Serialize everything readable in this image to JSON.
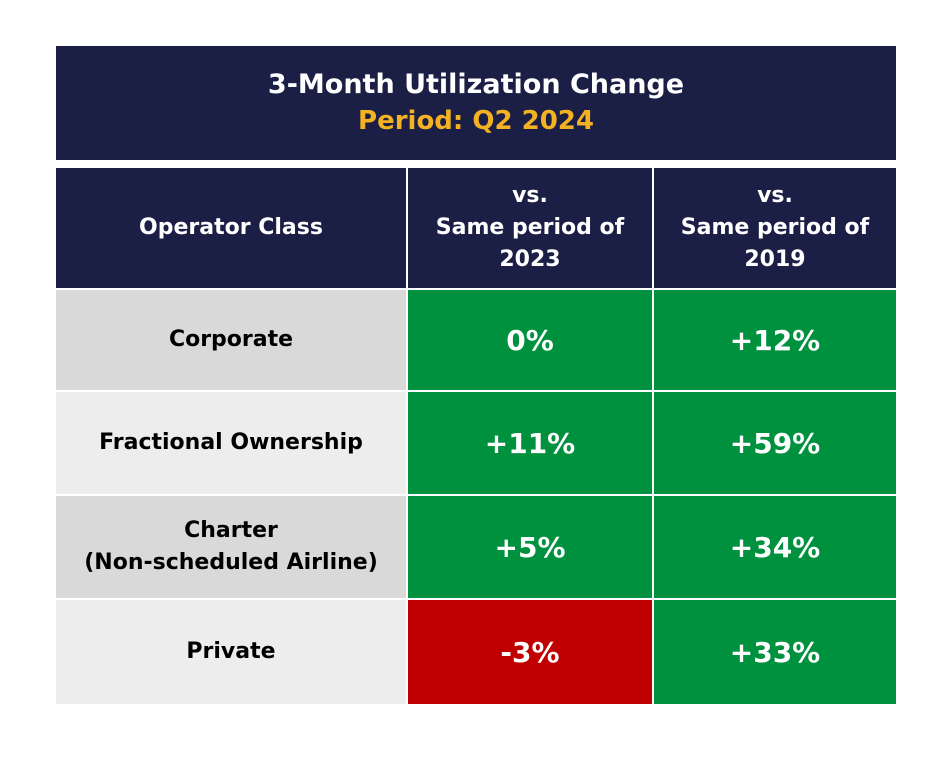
{
  "colors": {
    "header_bg": "#1c1f45",
    "subtitle": "#f4b223",
    "positive": "#00913f",
    "negative": "#c00000",
    "label_bg_odd": "#d9d9d9",
    "label_bg_even": "#ededed"
  },
  "chart_data": {
    "type": "table",
    "title": "3-Month Utilization Change",
    "subtitle": "Period: Q2 2024",
    "columns": [
      "Operator Class",
      "vs.\nSame period of\n2023",
      "vs.\nSame period of\n2019"
    ],
    "rows": [
      {
        "label": "Corporate",
        "values": [
          "0%",
          "+12%"
        ],
        "status": [
          "positive",
          "positive"
        ]
      },
      {
        "label": "Fractional Ownership",
        "values": [
          "+11%",
          "+59%"
        ],
        "status": [
          "positive",
          "positive"
        ]
      },
      {
        "label": "Charter\n(Non-scheduled Airline)",
        "values": [
          "+5%",
          "+34%"
        ],
        "status": [
          "positive",
          "positive"
        ]
      },
      {
        "label": "Private",
        "values": [
          "-3%",
          "+33%"
        ],
        "status": [
          "negative",
          "positive"
        ]
      }
    ]
  }
}
